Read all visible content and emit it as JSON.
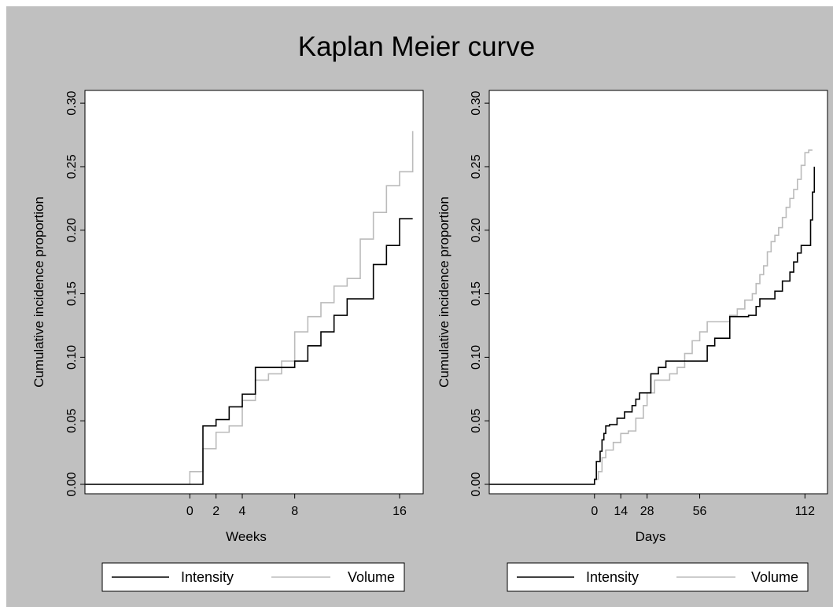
{
  "title": "Kaplan Meier curve",
  "colors": {
    "background": "#c0c0c0",
    "plot_area": "#ffffff",
    "Intensity": "#000000",
    "Volume": "#bbbbbb"
  },
  "chart_data": [
    {
      "type": "line",
      "step": true,
      "xlabel": "Weeks",
      "ylabel": "Cumulative incidence proportion",
      "xlim": [
        -8,
        17.8
      ],
      "ylim": [
        0,
        0.31
      ],
      "xticks": [
        0,
        2,
        4,
        8,
        16
      ],
      "yticks": [
        "0.00",
        "0.05",
        "0.10",
        "0.15",
        "0.20",
        "0.25",
        "0.30"
      ],
      "legend_position": "bottom",
      "series": [
        {
          "name": "Intensity",
          "color": "#000000",
          "x": [
            -8,
            0,
            1,
            1,
            2,
            3,
            4,
            5,
            8,
            9,
            10,
            11,
            12,
            14,
            15,
            16,
            17
          ],
          "y": [
            0,
            0,
            0,
            0.046,
            0.051,
            0.061,
            0.071,
            0.092,
            0.097,
            0.109,
            0.12,
            0.133,
            0.146,
            0.173,
            0.188,
            0.209,
            0.209
          ]
        },
        {
          "name": "Volume",
          "color": "#bbbbbb",
          "x": [
            -8,
            0,
            0,
            1,
            2,
            3,
            4,
            5,
            6,
            7,
            8,
            9,
            10,
            11,
            12,
            13,
            14,
            15,
            16,
            17,
            17
          ],
          "y": [
            0,
            0,
            0.01,
            0.028,
            0.041,
            0.046,
            0.066,
            0.082,
            0.087,
            0.097,
            0.12,
            0.132,
            0.143,
            0.156,
            0.162,
            0.193,
            0.214,
            0.235,
            0.246,
            0.246,
            0.278
          ]
        }
      ]
    },
    {
      "type": "line",
      "step": true,
      "xlabel": "Days",
      "ylabel": "Cumulative incidence proportion",
      "xlim": [
        -56,
        124
      ],
      "ylim": [
        0,
        0.31
      ],
      "xticks": [
        0,
        14,
        28,
        56,
        112
      ],
      "yticks": [
        "0.00",
        "0.05",
        "0.10",
        "0.15",
        "0.20",
        "0.25",
        "0.30"
      ],
      "legend_position": "bottom",
      "series": [
        {
          "name": "Intensity",
          "color": "#000000",
          "x": [
            -56,
            0,
            0,
            1,
            3,
            4,
            5,
            6,
            8,
            12,
            16,
            20,
            22,
            24,
            30,
            34,
            38,
            42,
            56,
            60,
            64,
            66,
            72,
            75,
            78,
            82,
            86,
            88,
            92,
            96,
            100,
            104,
            106,
            108,
            110,
            115,
            116,
            117
          ],
          "y": [
            0,
            0,
            0.004,
            0.018,
            0.026,
            0.035,
            0.04,
            0.046,
            0.047,
            0.052,
            0.057,
            0.062,
            0.067,
            0.072,
            0.087,
            0.092,
            0.097,
            0.097,
            0.097,
            0.109,
            0.115,
            0.115,
            0.132,
            0.132,
            0.132,
            0.133,
            0.14,
            0.146,
            0.146,
            0.152,
            0.16,
            0.167,
            0.175,
            0.182,
            0.188,
            0.208,
            0.23,
            0.25
          ]
        },
        {
          "name": "Volume",
          "color": "#bbbbbb",
          "x": [
            -56,
            0,
            0,
            2,
            4,
            6,
            10,
            14,
            18,
            22,
            26,
            28,
            32,
            36,
            40,
            44,
            48,
            52,
            56,
            60,
            64,
            68,
            72,
            76,
            80,
            84,
            86,
            88,
            90,
            92,
            94,
            96,
            98,
            100,
            102,
            104,
            106,
            108,
            110,
            112,
            114,
            116
          ],
          "y": [
            0,
            0,
            0.004,
            0.01,
            0.021,
            0.027,
            0.033,
            0.04,
            0.042,
            0.052,
            0.062,
            0.072,
            0.082,
            0.082,
            0.087,
            0.092,
            0.103,
            0.113,
            0.12,
            0.128,
            0.128,
            0.128,
            0.133,
            0.138,
            0.145,
            0.15,
            0.158,
            0.165,
            0.172,
            0.183,
            0.191,
            0.196,
            0.202,
            0.21,
            0.218,
            0.225,
            0.232,
            0.24,
            0.251,
            0.261,
            0.263,
            0.263
          ]
        }
      ]
    }
  ]
}
